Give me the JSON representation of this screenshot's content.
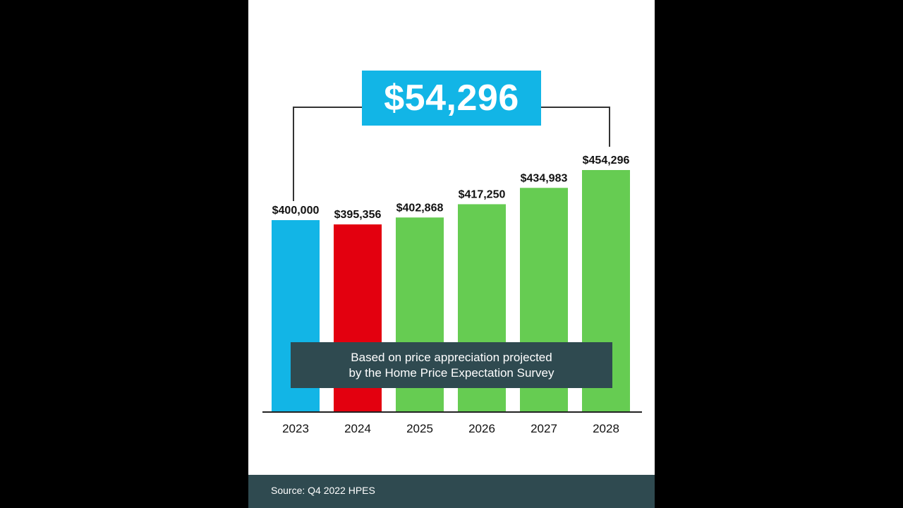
{
  "colors": {
    "background": "#000000",
    "panel": "#ffffff",
    "baseline": "#ffffff",
    "highlight": "#12b5e6",
    "decrease": "#e3000f",
    "increase": "#66cc52",
    "note_bg": "#2f4a50",
    "footer_bg": "#2f4a50",
    "text": "#111111"
  },
  "highlight": {
    "value": "$54,296"
  },
  "note": {
    "line1": "Based on price appreciation projected",
    "line2": "by the Home Price Expectation Survey"
  },
  "footer": {
    "source": "Source: Q4 2022 HPES"
  },
  "chart_data": {
    "type": "bar",
    "categories": [
      "2023",
      "2024",
      "2025",
      "2026",
      "2027",
      "2028"
    ],
    "values": [
      400000,
      395356,
      402868,
      417250,
      434983,
      454296
    ],
    "value_labels": [
      "$400,000",
      "$395,356",
      "$402,868",
      "$417,250",
      "$434,983",
      "$454,296"
    ],
    "bar_colors": [
      "#12b5e6",
      "#e3000f",
      "#66cc52",
      "#66cc52",
      "#66cc52",
      "#66cc52"
    ],
    "title": "",
    "xlabel": "",
    "ylabel": "",
    "grid": false,
    "legend": "none",
    "annotation": "$54,296"
  }
}
